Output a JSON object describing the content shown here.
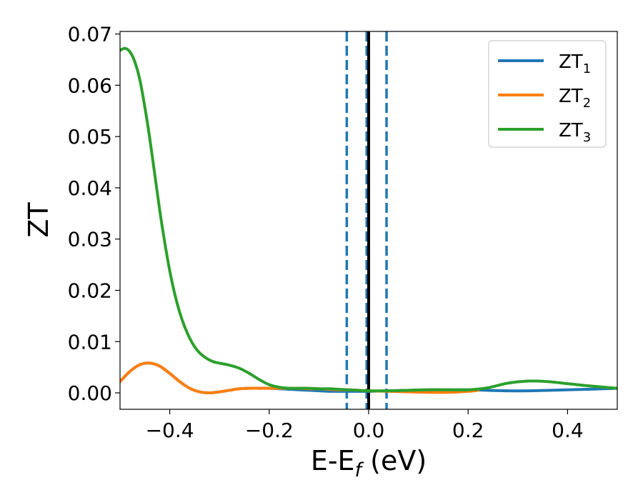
{
  "chart_data": {
    "type": "line",
    "xlabel": "E-E",
    "xlabel_sub": "f",
    "xlabel_unit": " (eV)",
    "ylabel": "ZT",
    "xlim": [
      -0.5,
      0.5
    ],
    "ylim": [
      -0.0032,
      0.0705
    ],
    "xticks": [
      -0.4,
      -0.2,
      0.0,
      0.2,
      0.4
    ],
    "xtick_labels": [
      "−0.4",
      "−0.2",
      "0.0",
      "0.2",
      "0.4"
    ],
    "yticks": [
      0.0,
      0.01,
      0.02,
      0.03,
      0.04,
      0.05,
      0.06,
      0.07
    ],
    "ytick_labels": [
      "0.00",
      "0.01",
      "0.02",
      "0.03",
      "0.04",
      "0.05",
      "0.06",
      "0.07"
    ],
    "legend_position": "top-right",
    "grid": false,
    "vlines": [
      {
        "x": -0.044,
        "style": "dashed",
        "color": "#1f77b4"
      },
      {
        "x": -0.004,
        "style": "dashed",
        "color": "#1f77b4"
      },
      {
        "x": 0.036,
        "style": "dashed",
        "color": "#1f77b4"
      },
      {
        "x": 0.0,
        "style": "solid",
        "color": "#000000"
      }
    ],
    "series": [
      {
        "name": "ZT",
        "name_sub": "1",
        "color": "#1f77b4",
        "x": [
          -0.5,
          -0.48,
          -0.46,
          -0.44,
          -0.42,
          -0.4,
          -0.38,
          -0.36,
          -0.34,
          -0.32,
          -0.3,
          -0.28,
          -0.26,
          -0.24,
          -0.22,
          -0.2,
          -0.18,
          -0.16,
          -0.14,
          -0.12,
          -0.1,
          -0.08,
          -0.06,
          -0.04,
          -0.02,
          0.0,
          0.04,
          0.08,
          0.12,
          0.16,
          0.2,
          0.24,
          0.28,
          0.32,
          0.36,
          0.4,
          0.44,
          0.5
        ],
        "y": [
          0.0022,
          0.0042,
          0.0055,
          0.0058,
          0.0052,
          0.0038,
          0.0022,
          0.0009,
          0.0002,
          0.0,
          0.0002,
          0.0005,
          0.0008,
          0.0009,
          0.0009,
          0.0009,
          0.0008,
          0.0007,
          0.0006,
          0.0005,
          0.0004,
          0.0003,
          0.0003,
          0.0003,
          0.0003,
          0.0003,
          0.0004,
          0.0005,
          0.0006,
          0.0006,
          0.0006,
          0.0005,
          0.0004,
          0.0004,
          0.0005,
          0.0006,
          0.0007,
          0.0009
        ]
      },
      {
        "name": "ZT",
        "name_sub": "2",
        "color": "#ff7f0e",
        "x": [
          -0.5,
          -0.48,
          -0.46,
          -0.44,
          -0.42,
          -0.4,
          -0.38,
          -0.36,
          -0.34,
          -0.32,
          -0.3,
          -0.28,
          -0.26,
          -0.24,
          -0.22,
          -0.2,
          -0.18,
          -0.16,
          -0.14,
          -0.12,
          -0.1,
          -0.08,
          -0.06,
          -0.04,
          -0.02,
          0.0,
          0.04,
          0.08,
          0.12,
          0.16,
          0.2,
          0.22
        ],
        "y": [
          0.0022,
          0.0042,
          0.0055,
          0.0058,
          0.0052,
          0.0038,
          0.0022,
          0.0009,
          0.0002,
          0.0,
          0.0002,
          0.0005,
          0.0008,
          0.0009,
          0.0009,
          0.0009,
          0.0009,
          0.0009,
          0.0009,
          0.0008,
          0.0008,
          0.0007,
          0.0006,
          0.0006,
          0.0005,
          0.0004,
          0.0003,
          0.0002,
          0.0001,
          0.0001,
          0.0003,
          0.0005
        ]
      },
      {
        "name": "ZT",
        "name_sub": "3",
        "color": "#2ca02c",
        "x": [
          -0.5,
          -0.49,
          -0.48,
          -0.47,
          -0.46,
          -0.45,
          -0.44,
          -0.43,
          -0.42,
          -0.41,
          -0.4,
          -0.39,
          -0.38,
          -0.37,
          -0.36,
          -0.35,
          -0.34,
          -0.33,
          -0.32,
          -0.31,
          -0.3,
          -0.28,
          -0.26,
          -0.24,
          -0.22,
          -0.2,
          -0.18,
          -0.16,
          -0.14,
          -0.12,
          -0.1,
          -0.08,
          -0.06,
          -0.04,
          -0.02,
          0.0,
          0.04,
          0.08,
          0.12,
          0.16,
          0.2,
          0.24,
          0.28,
          0.32,
          0.36,
          0.4,
          0.44,
          0.5
        ],
        "y": [
          0.0668,
          0.0672,
          0.0665,
          0.0645,
          0.061,
          0.0557,
          0.0495,
          0.0425,
          0.0355,
          0.0293,
          0.0238,
          0.0193,
          0.0157,
          0.0129,
          0.0107,
          0.009,
          0.0078,
          0.007,
          0.0064,
          0.006,
          0.0058,
          0.0054,
          0.0048,
          0.0038,
          0.0026,
          0.0016,
          0.0011,
          0.0009,
          0.0009,
          0.0009,
          0.0008,
          0.0008,
          0.0007,
          0.0006,
          0.0005,
          0.0004,
          0.0004,
          0.0005,
          0.0006,
          0.0006,
          0.0006,
          0.001,
          0.0019,
          0.0023,
          0.0022,
          0.0018,
          0.0014,
          0.0009
        ]
      }
    ]
  }
}
